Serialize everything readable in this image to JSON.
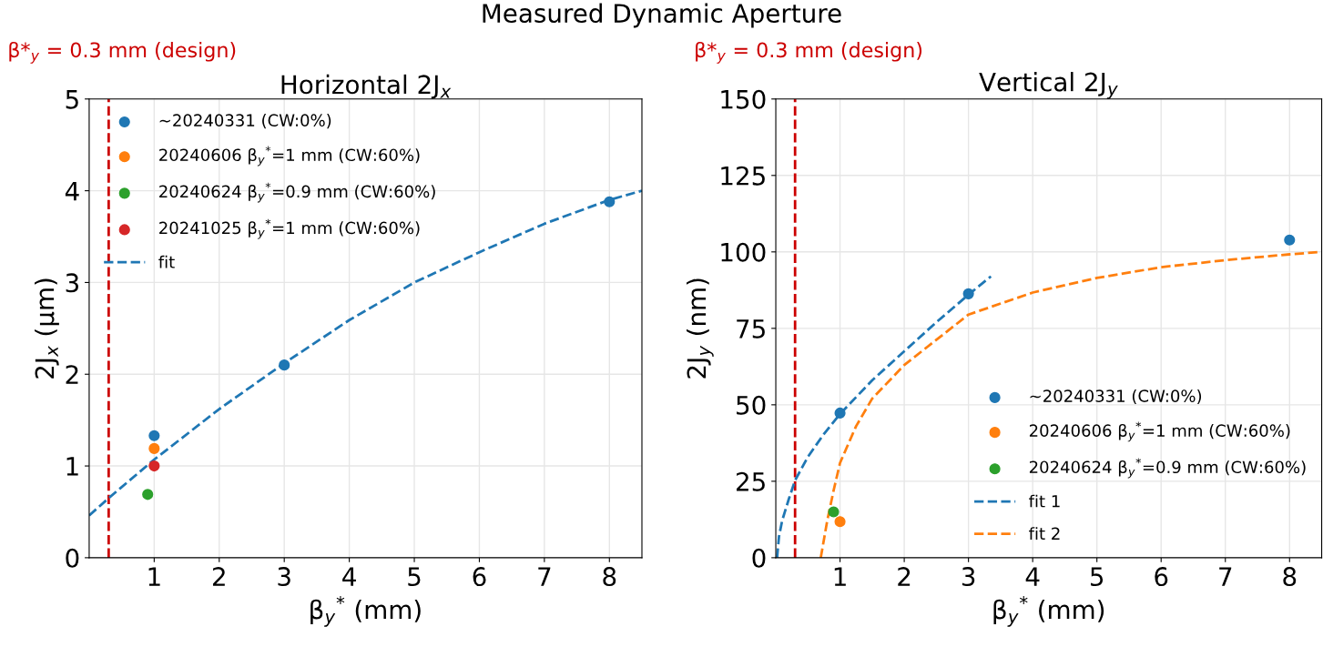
{
  "chart_data": [
    {
      "type": "scatter",
      "title": "Horizontal 2J$_{x}$",
      "xlabel": "β$_{y}$$^{*}$ (mm)",
      "ylabel": "2J$_{x}$ (μm)",
      "annotations": [
        "Measured Dynamic Aperture"
      ],
      "xlim": [
        0,
        8.5
      ],
      "xticks": [
        1,
        2,
        3,
        4,
        5,
        6,
        7,
        8
      ],
      "ylim": [
        0,
        5
      ],
      "yticks": [
        0,
        1,
        2,
        3,
        4,
        5
      ],
      "grid": true,
      "legend": "top left",
      "marker": "circle",
      "ref_lines": [
        {
          "axis": "x",
          "value": 0.3,
          "label": "β*$_{y}$ = 0.3 mm (design)",
          "color": "#cc0000",
          "line_style": "dashed"
        }
      ],
      "series": [
        {
          "name": "~20240331 (CW:0%)",
          "color": "#1f77b4",
          "x": [
            1,
            3,
            8
          ],
          "values": [
            1.33,
            2.1,
            3.88
          ]
        },
        {
          "name": "20240606 β$_{y}$$^{*}$=1 mm (CW:60%)",
          "color": "#ff7f0e",
          "x": [
            1
          ],
          "values": [
            1.19
          ]
        },
        {
          "name": "20240624 β$_{y}$$^{*}$=0.9 mm (CW:60%)",
          "color": "#2ca02c",
          "x": [
            0.9
          ],
          "values": [
            0.69
          ]
        },
        {
          "name": "20241025 β$_{y}$$^{*}$=1 mm (CW:60%)",
          "color": "#d62728",
          "x": [
            1
          ],
          "values": [
            1.0
          ]
        },
        {
          "name": "fit",
          "type": "line",
          "line_style": "dashed",
          "marker": "none",
          "color": "#1f77b4",
          "x": [
            0,
            0.3,
            1,
            2,
            3,
            4,
            5,
            6,
            7,
            8,
            8.5
          ],
          "values": [
            0.46,
            0.65,
            1.07,
            1.62,
            2.12,
            2.59,
            3.0,
            3.33,
            3.64,
            3.9,
            4.0
          ]
        }
      ]
    },
    {
      "type": "scatter",
      "title": "Vertical 2J$_{y}$",
      "xlabel": "β$_{y}$$^{*}$ (mm)",
      "ylabel": "2J$_{y}$ (nm)",
      "xlim": [
        0,
        8.5
      ],
      "xticks": [
        1,
        2,
        3,
        4,
        5,
        6,
        7,
        8
      ],
      "ylim": [
        0,
        150
      ],
      "yticks": [
        0,
        25,
        50,
        75,
        100,
        125,
        150
      ],
      "grid": true,
      "legend": "bottom right",
      "marker": "circle",
      "ref_lines": [
        {
          "axis": "x",
          "value": 0.3,
          "label": "β*$_{y}$ = 0.3 mm (design)",
          "color": "#cc0000",
          "line_style": "dashed"
        }
      ],
      "series": [
        {
          "name": "~20240331 (CW:0%)",
          "color": "#1f77b4",
          "x": [
            1,
            3,
            8
          ],
          "values": [
            47.3,
            86.3,
            103.9
          ]
        },
        {
          "name": "20240606 β$_{y}$$^{*}$=1 mm (CW:60%)",
          "color": "#ff7f0e",
          "x": [
            1
          ],
          "values": [
            11.8
          ]
        },
        {
          "name": "20240624 β$_{y}$$^{*}$=0.9 mm (CW:60%)",
          "color": "#2ca02c",
          "x": [
            0.9
          ],
          "values": [
            15.0
          ]
        },
        {
          "name": "fit 1",
          "type": "line",
          "line_style": "dashed",
          "marker": "none",
          "color": "#1f77b4",
          "x": [
            0.02,
            0.05,
            0.1,
            0.2,
            0.3,
            0.5,
            0.75,
            1,
            1.5,
            2,
            2.5,
            3,
            3.35
          ],
          "values": [
            0,
            7,
            12.2,
            19,
            25.3,
            33,
            40.5,
            47,
            58,
            67.5,
            77,
            86,
            92
          ]
        },
        {
          "name": "fit 2",
          "type": "line",
          "line_style": "dashed",
          "marker": "none",
          "color": "#ff7f0e",
          "x": [
            0.7,
            0.75,
            0.8,
            0.9,
            1,
            1.25,
            1.5,
            2,
            3,
            4,
            5,
            6,
            7,
            8,
            8.5
          ],
          "values": [
            0,
            6,
            12,
            22,
            31,
            43,
            52,
            63,
            79.5,
            86.7,
            91.5,
            95,
            97.3,
            99.2,
            100
          ]
        }
      ]
    }
  ]
}
